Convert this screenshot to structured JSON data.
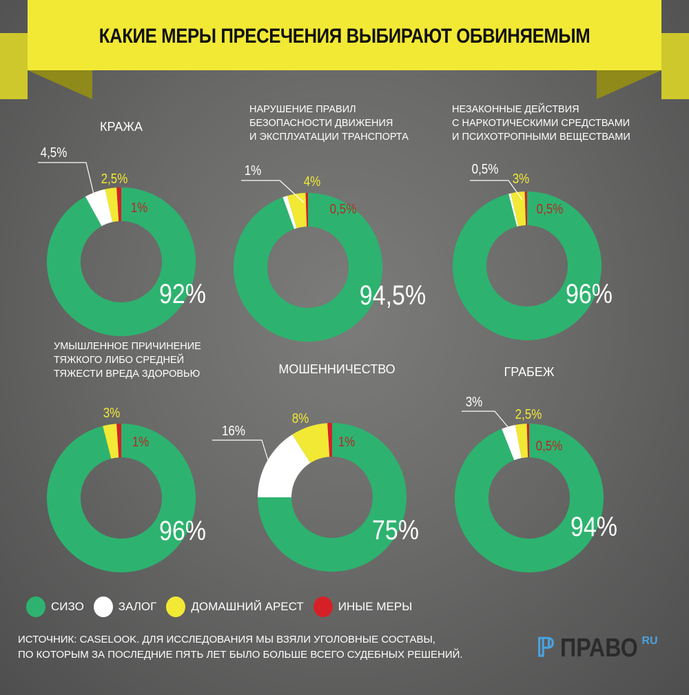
{
  "title": "КАКИЕ МЕРЫ ПРЕСЕЧЕНИЯ ВЫБИРАЮТ ОБВИНЯЕМЫМ",
  "colors": {
    "sizo": "#2db36f",
    "zalog": "#ffffff",
    "home": "#f2e935",
    "other": "#d62027",
    "other_label": "#b8272b"
  },
  "legend": [
    "СИЗО",
    "ЗАЛОГ",
    "ДОМАШНИЙ АРЕСТ",
    "ИНЫЕ МЕРЫ"
  ],
  "source": [
    "ИСТОЧНИК: CASELOOK. ДЛЯ ИССЛЕДОВАНИЯ МЫ ВЗЯЛИ УГОЛОВНЫЕ СОСТАВЫ,",
    "ПО КОТОРЫМ ЗА ПОСЛЕДНИЕ ПЯТЬ ЛЕТ БЫЛО БОЛЬШЕ ВСЕГО СУДЕБНЫХ РЕШЕНИЙ."
  ],
  "logo": {
    "word": "ПРАВО",
    "suffix": "RU"
  },
  "chart_data": [
    {
      "type": "pie",
      "title": "КРАЖА",
      "categories": [
        "СИЗО",
        "ЗАЛОГ",
        "ДОМАШНИЙ АРЕСТ",
        "ИНЫЕ МЕРЫ"
      ],
      "values": [
        92,
        4.5,
        2.5,
        1
      ],
      "labels": [
        "92%",
        "4,5%",
        "2,5%",
        "1%"
      ]
    },
    {
      "type": "pie",
      "title": "НАРУШЕНИЕ ПРАВИЛ\nБЕЗОПАСНОСТИ ДВИЖЕНИЯ\nИ ЭКСПЛУАТАЦИИ ТРАНСПОРТА",
      "categories": [
        "СИЗО",
        "ЗАЛОГ",
        "ДОМАШНИЙ АРЕСТ",
        "ИНЫЕ МЕРЫ"
      ],
      "values": [
        94.5,
        1,
        4,
        0.5
      ],
      "labels": [
        "94,5%",
        "1%",
        "4%",
        "0,5%"
      ]
    },
    {
      "type": "pie",
      "title": "НЕЗАКОННЫЕ ДЕЙСТВИЯ\nС НАРКОТИЧЕСКИМИ СРЕДСТВАМИ\nИ ПСИХОТРОПНЫМИ ВЕЩЕСТВАМИ",
      "categories": [
        "СИЗО",
        "ЗАЛОГ",
        "ДОМАШНИЙ АРЕСТ",
        "ИНЫЕ МЕРЫ"
      ],
      "values": [
        96,
        0.5,
        3,
        0.5
      ],
      "labels": [
        "96%",
        "0,5%",
        "3%",
        "0,5%"
      ]
    },
    {
      "type": "pie",
      "title": "УМЫШЛЕННОЕ ПРИЧИНЕНИЕ\nТЯЖКОГО ЛИБО СРЕДНЕЙ\nТЯЖЕСТИ ВРЕДА ЗДОРОВЬЮ",
      "categories": [
        "СИЗО",
        "ДОМАШНИЙ АРЕСТ",
        "ИНЫЕ МЕРЫ"
      ],
      "values": [
        96,
        3,
        1
      ],
      "labels": [
        "96%",
        "3%",
        "1%"
      ]
    },
    {
      "type": "pie",
      "title": "МОШЕННИЧЕСТВО",
      "categories": [
        "СИЗО",
        "ЗАЛОГ",
        "ДОМАШНИЙ АРЕСТ",
        "ИНЫЕ МЕРЫ"
      ],
      "values": [
        75,
        16,
        8,
        1
      ],
      "labels": [
        "75%",
        "16%",
        "8%",
        "1%"
      ]
    },
    {
      "type": "pie",
      "title": "ГРАБЕЖ",
      "categories": [
        "СИЗО",
        "ЗАЛОГ",
        "ДОМАШНИЙ АРЕСТ",
        "ИНЫЕ МЕРЫ"
      ],
      "values": [
        94,
        3,
        2.5,
        0.5
      ],
      "labels": [
        "94%",
        "3%",
        "2,5%",
        "0,5%"
      ]
    }
  ]
}
